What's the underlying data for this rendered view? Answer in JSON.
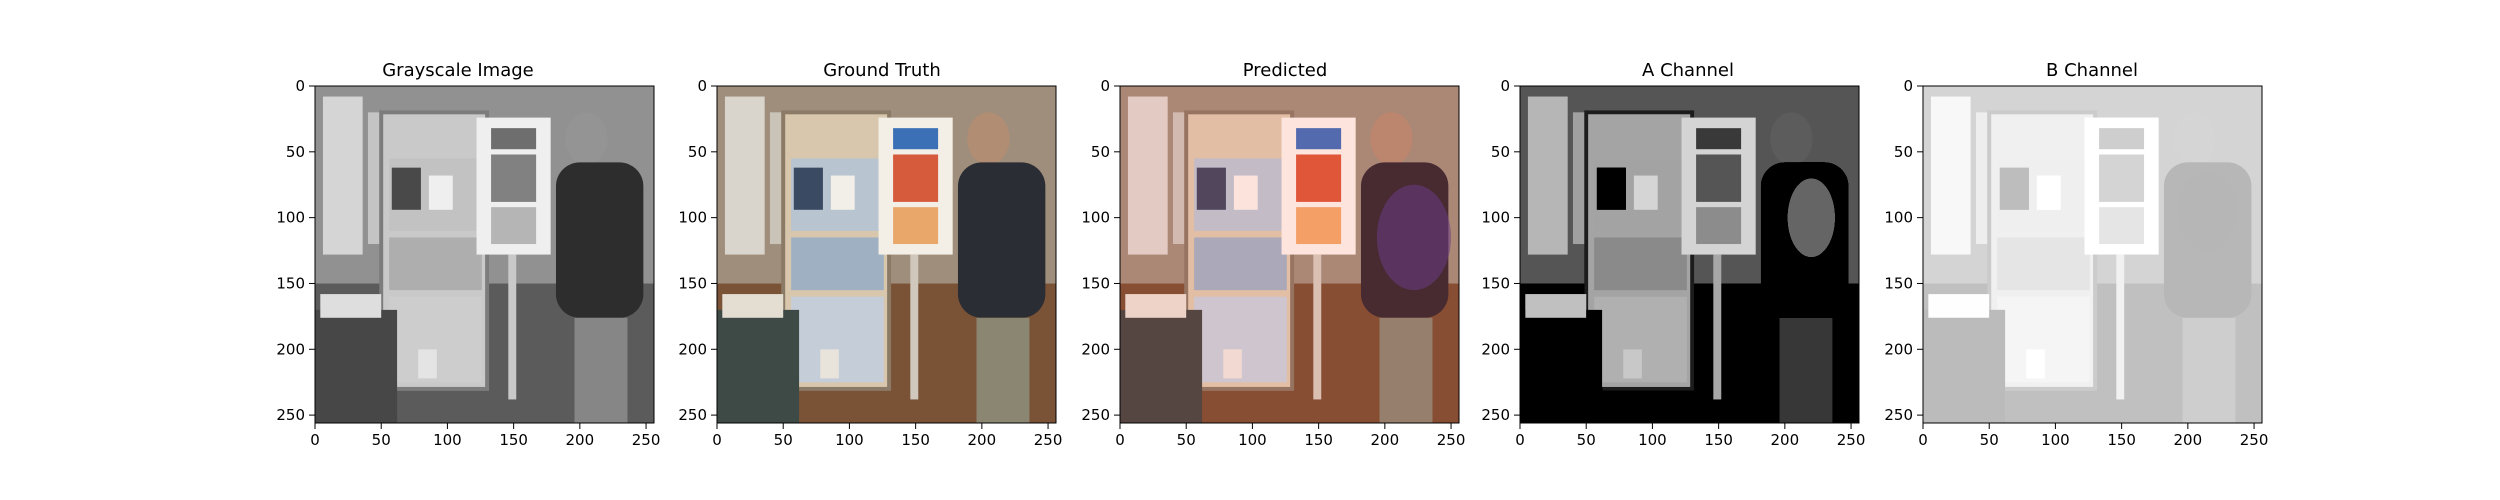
{
  "figure": {
    "axes_ticks": {
      "x": [
        "0",
        "50",
        "100",
        "150",
        "200",
        "250"
      ],
      "y": [
        "0",
        "50",
        "100",
        "150",
        "200",
        "250"
      ]
    },
    "panels": [
      {
        "id": "grayscale",
        "title": "Grayscale Image",
        "image_kind": "grayscale photo of a person looking at a display case"
      },
      {
        "id": "ground-truth",
        "title": "Ground Truth",
        "image_kind": "color photo (true colors)"
      },
      {
        "id": "predicted",
        "title": "Predicted",
        "image_kind": "colorized prediction with reddish cast"
      },
      {
        "id": "a-channel",
        "title": "A Channel",
        "image_kind": "dark grayscale channel map"
      },
      {
        "id": "b-channel",
        "title": "B Channel",
        "image_kind": "light grayscale channel map"
      }
    ]
  }
}
